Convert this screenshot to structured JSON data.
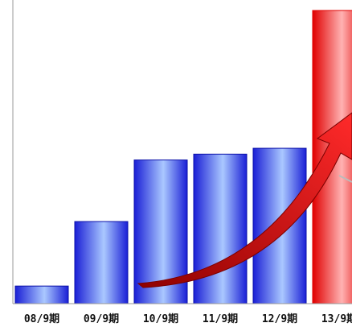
{
  "chart_data": {
    "type": "bar",
    "categories": [
      "08/9期",
      "09/9期",
      "10/9期",
      "11/9期",
      "12/9期",
      "13/9期"
    ],
    "values": [
      6,
      28,
      49,
      51,
      53,
      100
    ],
    "ylim": [
      0,
      100
    ],
    "title": "",
    "xlabel": "",
    "ylabel": "",
    "grid": false,
    "legend": "none",
    "highlight_index": 5,
    "annotations": [
      "growth-arrow"
    ]
  },
  "colors": {
    "bar_dark": "#1a1fd6",
    "bar_light": "#aac8ff",
    "highlight_dark": "#e00000",
    "highlight_light": "#ffb2b2",
    "arrow_dark": "#8e0000",
    "arrow_light": "#ff2a2a",
    "axis": "#999999"
  }
}
